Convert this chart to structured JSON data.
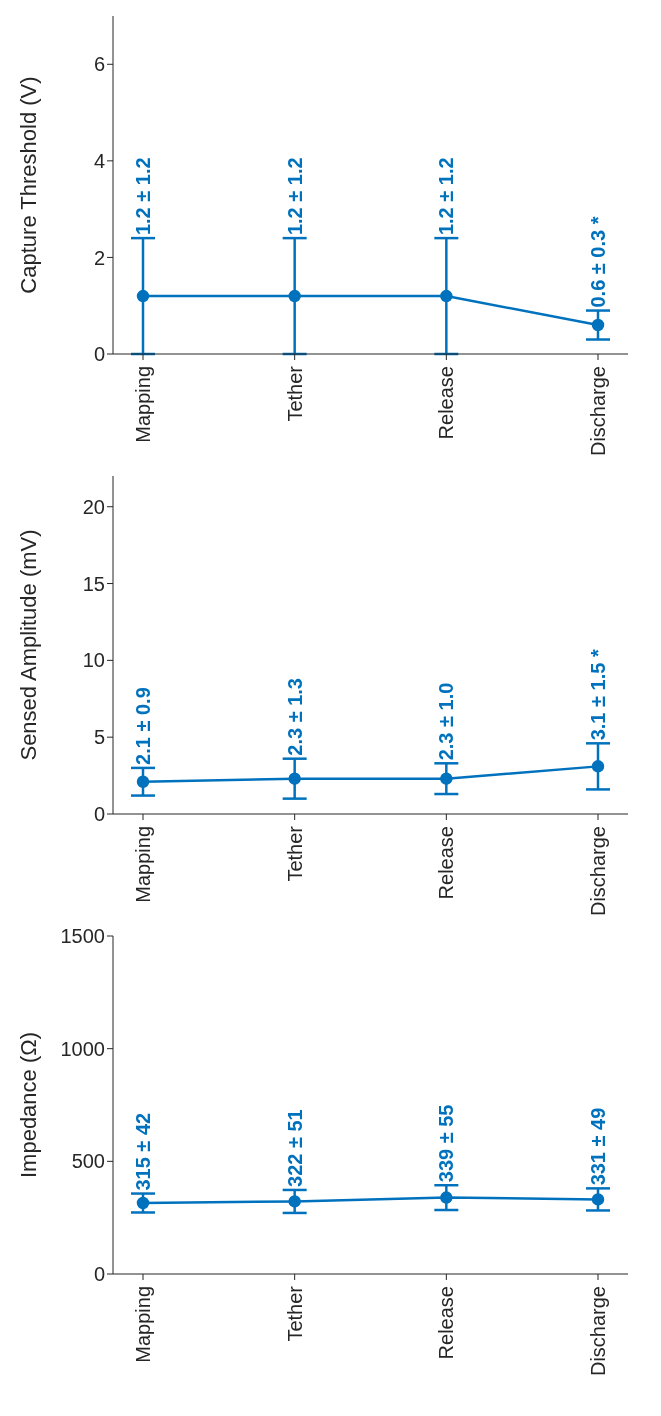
{
  "chart_data": [
    {
      "type": "line",
      "ylabel": "Capture Threshold (V)",
      "categories": [
        "Mapping",
        "Tether",
        "Release",
        "Discharge"
      ],
      "color": "#0072bd",
      "marker": "circle",
      "grid": false,
      "ylim": [
        0,
        7
      ],
      "yticks": [
        0,
        2,
        4,
        6
      ],
      "values": [
        1.2,
        1.2,
        1.2,
        0.6
      ],
      "errors": [
        1.2,
        1.2,
        1.2,
        0.3
      ],
      "value_labels": [
        "1.2 ± 1.2",
        "1.2 ± 1.2",
        "1.2 ± 1.2",
        "0.6 ± 0.3 *"
      ]
    },
    {
      "type": "line",
      "ylabel": "Sensed Amplitude (mV)",
      "categories": [
        "Mapping",
        "Tether",
        "Release",
        "Discharge"
      ],
      "color": "#0072bd",
      "marker": "circle",
      "grid": false,
      "ylim": [
        0,
        22
      ],
      "yticks": [
        0,
        5,
        10,
        15,
        20
      ],
      "values": [
        2.1,
        2.3,
        2.3,
        3.1
      ],
      "errors": [
        0.9,
        1.3,
        1.0,
        1.5
      ],
      "value_labels": [
        "2.1 ± 0.9",
        "2.3 ± 1.3",
        "2.3 ± 1.0",
        "3.1 ± 1.5 *"
      ]
    },
    {
      "type": "line",
      "ylabel": "Impedance (Ω)",
      "categories": [
        "Mapping",
        "Tether",
        "Release",
        "Discharge"
      ],
      "color": "#0072bd",
      "marker": "circle",
      "grid": false,
      "ylim": [
        0,
        1500
      ],
      "yticks": [
        0,
        500,
        1000,
        1500
      ],
      "values": [
        315,
        322,
        339,
        331
      ],
      "errors": [
        42,
        51,
        55,
        49
      ],
      "value_labels": [
        "315 ± 42",
        "322 ± 51",
        "339 ± 55",
        "331 ± 49"
      ]
    }
  ]
}
